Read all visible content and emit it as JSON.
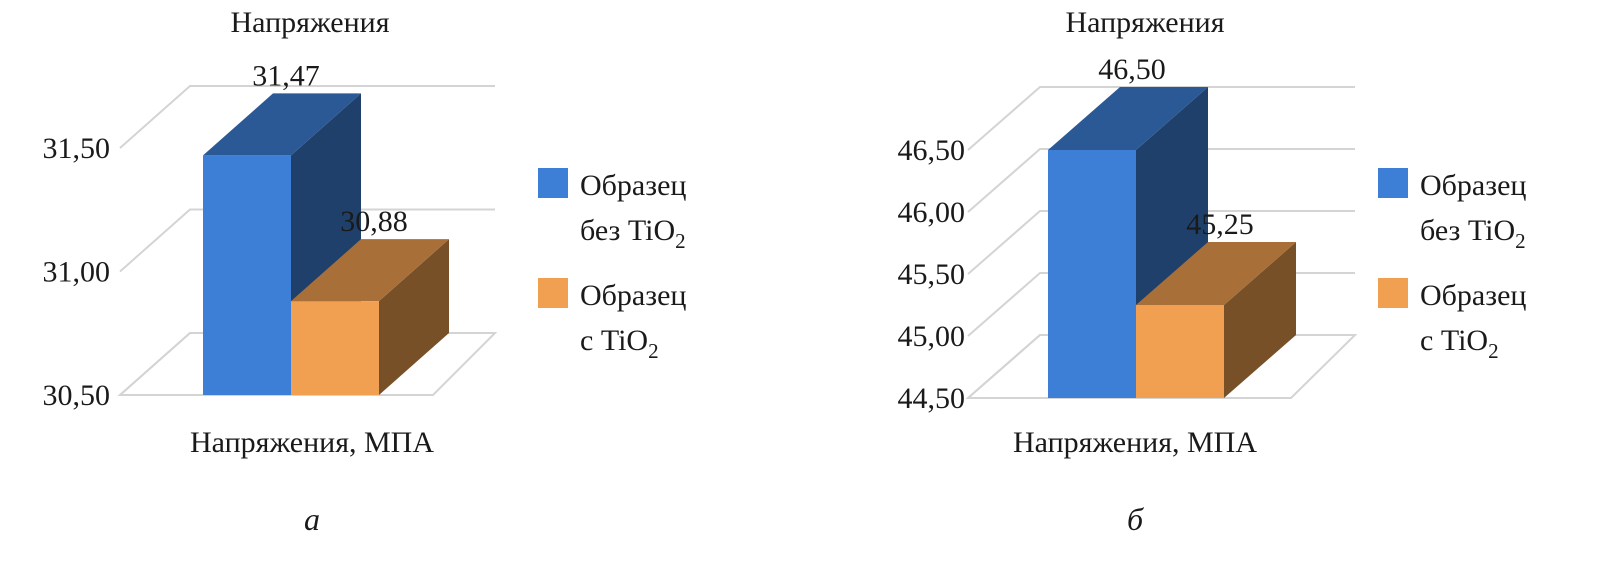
{
  "chart_data": [
    {
      "type": "bar",
      "title": "Напряжения",
      "xlabel": "Напряжения, МПА",
      "panel_label": "а",
      "categories": [
        "Напряжения, МПА"
      ],
      "series": [
        {
          "name": "Образец без TiO2",
          "legend_line1": "Образец",
          "legend_line2_prefix": "без TiO",
          "legend_line2_sub": "2",
          "values": [
            31.47
          ],
          "value_labels": [
            "31,47"
          ],
          "color": "#3d7fd6"
        },
        {
          "name": "Образец с TiO2",
          "legend_line1": "Образец",
          "legend_line2_prefix": "с TiO",
          "legend_line2_sub": "2",
          "values": [
            30.88
          ],
          "value_labels": [
            "30,88"
          ],
          "color": "#f0a050"
        }
      ],
      "ylim": [
        30.5,
        31.5
      ],
      "yticks": [
        30.5,
        31.0,
        31.5
      ],
      "ytick_labels": [
        "30,50",
        "31,00",
        "31,50"
      ],
      "grid": true,
      "legend": "right",
      "three_d": true
    },
    {
      "type": "bar",
      "title": "Напряжения",
      "xlabel": "Напряжения, МПА",
      "panel_label": "б",
      "categories": [
        "Напряжения, МПА"
      ],
      "series": [
        {
          "name": "Образец без TiO2",
          "legend_line1": "Образец",
          "legend_line2_prefix": "без TiO",
          "legend_line2_sub": "2",
          "values": [
            46.5
          ],
          "value_labels": [
            "46,50"
          ],
          "color": "#3d7fd6"
        },
        {
          "name": "Образец с TiO2",
          "legend_line1": "Образец",
          "legend_line2_prefix": "с TiO",
          "legend_line2_sub": "2",
          "values": [
            45.25
          ],
          "value_labels": [
            "45,25"
          ],
          "color": "#f0a050"
        }
      ],
      "ylim": [
        44.5,
        46.5
      ],
      "yticks": [
        44.5,
        45.0,
        45.5,
        46.0,
        46.5
      ],
      "ytick_labels": [
        "44,50",
        "45,00",
        "45,50",
        "46,00",
        "46,50"
      ],
      "grid": true,
      "legend": "right",
      "three_d": true
    }
  ]
}
